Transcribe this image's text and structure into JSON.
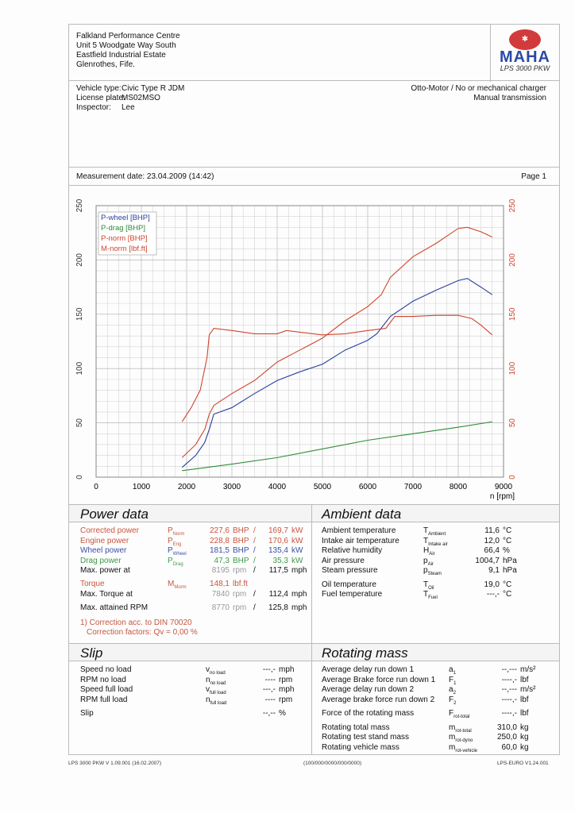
{
  "header": {
    "address": [
      "Falkland Performance Centre",
      "Unit 5 Woodgate Way South",
      "Eastfield Industrial Estate",
      "Glenrothes, Fife."
    ],
    "logo_text": "MAHA",
    "logo_seal": "Maschinenbau Haldenwang",
    "model": "LPS 3000 PKW"
  },
  "vehicle": {
    "type_label": "Vehicle type:",
    "type": "Civic Type R JDM",
    "plate_label": "License plate:",
    "plate": "MS02MSO",
    "inspector_label": "Inspector:",
    "inspector": "Lee",
    "engine": "Otto-Motor / No or mechanical charger",
    "transmission": "Manual transmission"
  },
  "measurement": {
    "date": "Measurement date: 23.04.2009 (14:42)",
    "page": "Page 1"
  },
  "chart_data": {
    "type": "line",
    "xlabel": "n [rpm]",
    "xlim": [
      0,
      9000
    ],
    "ylim": [
      0,
      250
    ],
    "y2lim": [
      0,
      250
    ],
    "xticks": [
      0,
      1000,
      2000,
      3000,
      4000,
      5000,
      6000,
      7000,
      8000,
      9000
    ],
    "yticks": [
      0,
      50,
      100,
      150,
      200,
      250
    ],
    "grid": true,
    "legend": "top-left",
    "series": [
      {
        "name": "P-wheel [BHP]",
        "color": "#2a3f9e",
        "x": [
          1900,
          2200,
          2400,
          2500,
          2600,
          3000,
          3500,
          4000,
          4500,
          5000,
          5500,
          6000,
          6200,
          6500,
          7000,
          7500,
          8000,
          8200,
          8500,
          8750
        ],
        "y": [
          9,
          20,
          32,
          44,
          58,
          64,
          77,
          89,
          97,
          104,
          117,
          126,
          132,
          148,
          162,
          172,
          181,
          183,
          175,
          168
        ]
      },
      {
        "name": "P-drag [BHP]",
        "color": "#2e8b3a",
        "x": [
          1900,
          3000,
          4000,
          5000,
          6000,
          7000,
          8000,
          8750
        ],
        "y": [
          6,
          12,
          18,
          26,
          34,
          40,
          46,
          51
        ]
      },
      {
        "name": "P-norm [BHP]",
        "color": "#d0452f",
        "x": [
          1900,
          2200,
          2400,
          2500,
          2600,
          3000,
          3500,
          4000,
          4500,
          5000,
          5500,
          6000,
          6300,
          6500,
          7000,
          7500,
          8000,
          8200,
          8500,
          8750
        ],
        "y": [
          18,
          30,
          44,
          58,
          66,
          77,
          89,
          106,
          117,
          128,
          144,
          157,
          168,
          184,
          203,
          215,
          229,
          230,
          226,
          221
        ]
      },
      {
        "name": "M-norm [lbf.ft]",
        "color": "#d0452f",
        "x": [
          1900,
          2100,
          2300,
          2450,
          2500,
          2600,
          3000,
          3500,
          4000,
          4200,
          5000,
          5500,
          6000,
          6400,
          6600,
          7000,
          7500,
          8000,
          8300,
          8500,
          8750
        ],
        "y": [
          51,
          64,
          80,
          110,
          131,
          137,
          135,
          132,
          132,
          135,
          131,
          132,
          135,
          137,
          148,
          148,
          149,
          149,
          146,
          140,
          131
        ]
      }
    ]
  },
  "power": {
    "title": "Power data",
    "rows": [
      {
        "label": "Corrected power",
        "sup": "1)",
        "sym": "P",
        "sub": "Norm",
        "v1": "227,6",
        "u1": "BHP",
        "v2": "169,7",
        "u2": "kW",
        "color": "#c8553f"
      },
      {
        "label": "Engine power",
        "sup": "",
        "sym": "P",
        "sub": "Eng",
        "v1": "228,8",
        "u1": "BHP",
        "v2": "170,6",
        "u2": "kW",
        "color": "#c8553f"
      },
      {
        "label": "Wheel power",
        "sup": "",
        "sym": "P",
        "sub": "Wheel",
        "v1": "181,5",
        "u1": "BHP",
        "v2": "135,4",
        "u2": "kW",
        "color": "#3a4fa8"
      },
      {
        "label": "Drag power",
        "sup": "",
        "sym": "P",
        "sub": "Drag",
        "v1": "47,3",
        "u1": "BHP",
        "v2": "35,3",
        "u2": "kW",
        "color": "#3f9a4a"
      }
    ],
    "max_power_label": "Max. power at",
    "max_power_rpm": "8195",
    "max_power_speed": "117,5",
    "torque_label": "Torque",
    "torque_sup": "1)",
    "torque_sym": "M",
    "torque_sub": "Morm",
    "torque_value": "148,1",
    "torque_unit": "lbf.ft",
    "max_torque_label": "Max. Torque at",
    "max_torque_rpm": "7840",
    "max_torque_speed": "112,4",
    "max_rpm_label": "Max. attained RPM",
    "max_rpm": "8770",
    "max_rpm_speed": "125,8",
    "rpm": "rpm",
    "mph": "mph",
    "slash": "/",
    "note1": "1) Correction acc. to DIN 70020",
    "note2": "Correction factors: Qv =   0,00 %"
  },
  "ambient": {
    "title": "Ambient data",
    "rows": [
      {
        "label": "Ambient temperature",
        "sym": "T",
        "sub": "Ambient",
        "v": "11,6",
        "u": "°C"
      },
      {
        "label": "Intake air temperature",
        "sym": "T",
        "sub": "Intake air",
        "v": "12,0",
        "u": "°C"
      },
      {
        "label": "Relative humidity",
        "sym": "H",
        "sub": "Air",
        "v": "66,4",
        "u": "%"
      },
      {
        "label": "Air pressure",
        "sym": "p",
        "sub": "Air",
        "v": "1004,7",
        "u": "hPa"
      },
      {
        "label": "Steam pressure",
        "sym": "p",
        "sub": "Steam",
        "v": "9,1",
        "u": "hPa"
      },
      {
        "label": "Oil temperature",
        "sym": "T",
        "sub": "Oil",
        "v": "19,0",
        "u": "°C"
      },
      {
        "label": "Fuel temperature",
        "sym": "T",
        "sub": "Fuel",
        "v": "---,-",
        "u": "°C"
      }
    ]
  },
  "slip": {
    "title": "Slip",
    "rows": [
      {
        "label": "Speed no load",
        "sym": "v",
        "sub": "no load",
        "v": "---,-",
        "u": "mph"
      },
      {
        "label": "RPM no load",
        "sym": "n",
        "sub": "no load",
        "v": "----",
        "u": "rpm"
      },
      {
        "label": "Speed full load",
        "sym": "v",
        "sub": "full load",
        "v": "---,-",
        "u": "mph"
      },
      {
        "label": "RPM full load",
        "sym": "n",
        "sub": "full load",
        "v": "----",
        "u": "rpm"
      },
      {
        "label": "Slip",
        "sym": "",
        "sub": "",
        "v": "--,--",
        "u": "%"
      }
    ]
  },
  "rotating": {
    "title": "Rotating mass",
    "rows": [
      {
        "label": "Average delay run down 1",
        "sym": "a",
        "sub": "1",
        "v": "--,---",
        "u": "m/s²"
      },
      {
        "label": "Average Brake force run down 1",
        "sym": "F",
        "sub": "1",
        "v": "----,-",
        "u": "lbf"
      },
      {
        "label": "Average delay run down 2",
        "sym": "a",
        "sub": "2",
        "v": "--,---",
        "u": "m/s²"
      },
      {
        "label": "Average brake force run down 2",
        "sym": "F",
        "sub": "2",
        "v": "----,-",
        "u": "lbf"
      },
      {
        "label": "Force of the rotating mass",
        "sym": "F",
        "sub": "rot-total",
        "v": "----,-",
        "u": "lbf"
      },
      {
        "label": "Rotating total mass",
        "sym": "m",
        "sub": "rot-total",
        "v": "310,0",
        "u": "kg"
      },
      {
        "label": "Rotating test stand mass",
        "sym": "m",
        "sub": "rot-dyno",
        "v": "250,0",
        "u": "kg"
      },
      {
        "label": "Rotating vehicle mass",
        "sym": "m",
        "sub": "rot-vehicle",
        "v": "60,0",
        "u": "kg"
      }
    ]
  },
  "footer": {
    "left": "LPS 3000 PKW V 1.09.001 (16.02.2007)",
    "center": "(100/000/0000/000/0000)",
    "right": "LPS-EURO V1.24.001"
  }
}
